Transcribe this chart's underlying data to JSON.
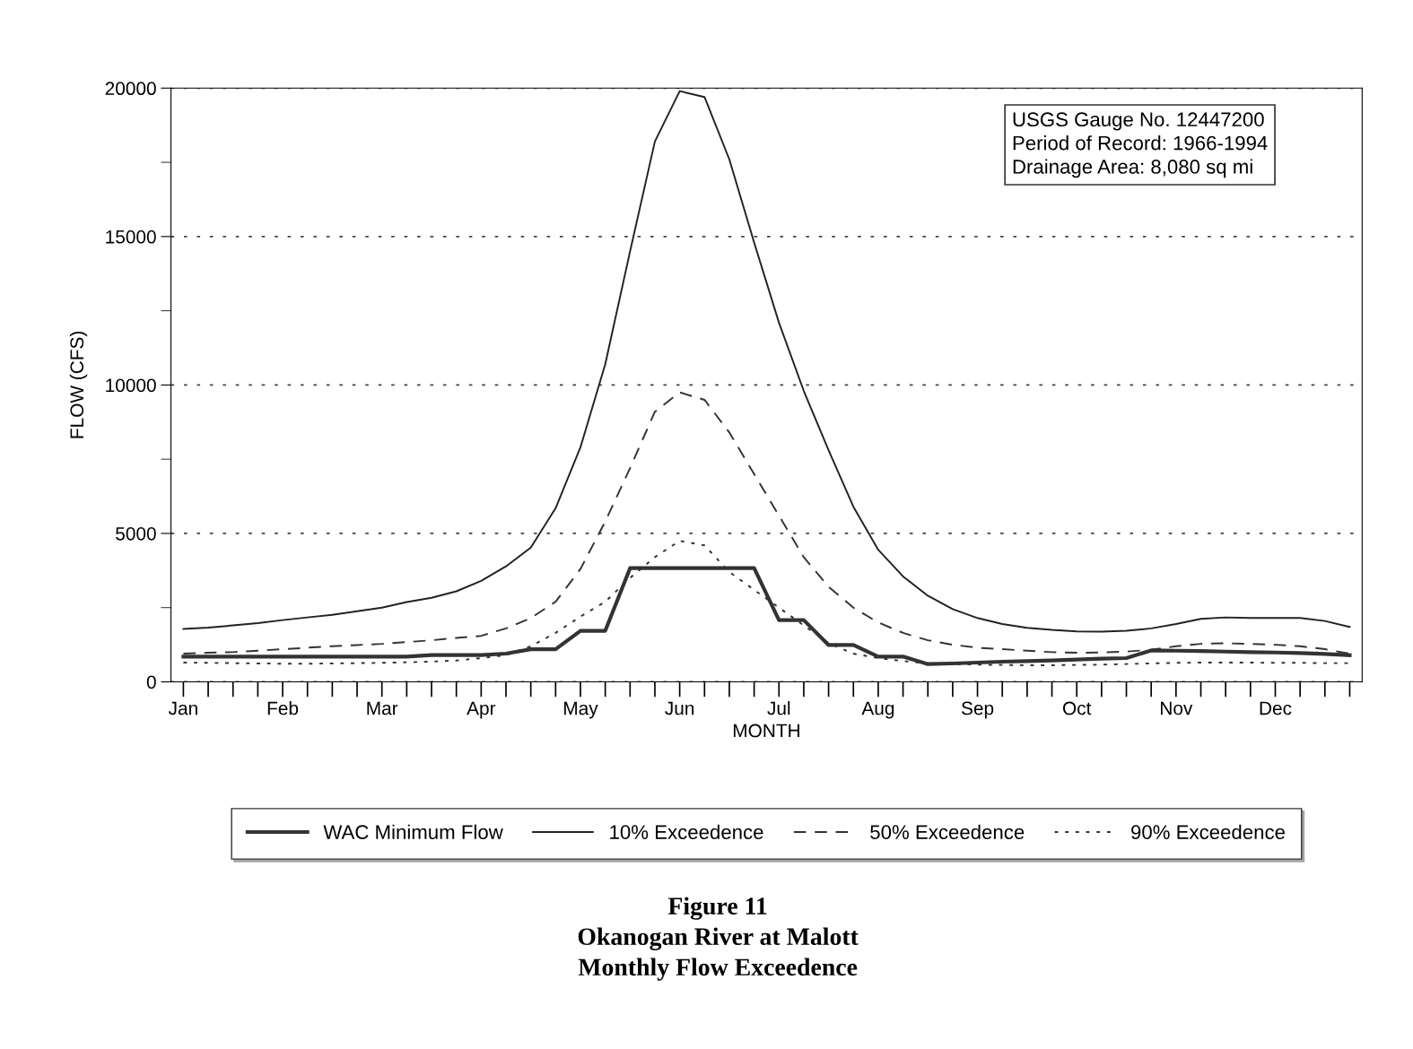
{
  "chart_data": {
    "type": "line",
    "title": "Figure 11\nOkanogan River at Malott\nMonthly Flow Exceedence",
    "xlabel": "MONTH",
    "ylabel": "FLOW (CFS)",
    "annotations": [
      "USGS Gauge No. 12447200\nPeriod of Record: 1966-1994\nDrainage Area: 8,080 sq mi"
    ],
    "categories": [
      "Jan",
      null,
      null,
      null,
      "Feb",
      null,
      null,
      null,
      "Mar",
      null,
      null,
      null,
      "Apr",
      null,
      null,
      null,
      "May",
      null,
      null,
      null,
      "Jun",
      null,
      null,
      null,
      "Jul",
      null,
      null,
      null,
      "Aug",
      null,
      null,
      null,
      "Sep",
      null,
      null,
      null,
      "Oct",
      null,
      null,
      null,
      "Nov",
      null,
      null,
      null,
      "Dec",
      null,
      null,
      null
    ],
    "ylim": [
      0,
      20000
    ],
    "yticks": [
      0,
      {
        "value": 2500,
        "label": null
      },
      5000,
      {
        "value": 7500,
        "label": null
      },
      10000,
      {
        "value": 12500,
        "label": null
      },
      15000,
      {
        "value": 17500,
        "label": null
      },
      20000
    ],
    "grid": "y",
    "legend": "bottom",
    "marker": "none",
    "series": [
      {
        "name": "WAC Minimum Flow",
        "color": "#333333",
        "line_style": "solid",
        "values": [
          850,
          850,
          850,
          850,
          850,
          850,
          850,
          850,
          850,
          850,
          900,
          900,
          900,
          950,
          1100,
          1100,
          1720,
          1720,
          3830,
          3830,
          3830,
          3830,
          3830,
          3830,
          2080,
          2080,
          1240,
          1240,
          850,
          850,
          600,
          620,
          650,
          680,
          700,
          720,
          750,
          780,
          800,
          1060,
          1050,
          1040,
          1020,
          1000,
          990,
          970,
          940,
          900
        ]
      },
      {
        "name": "10% Exceedence",
        "color": "#222222",
        "line_style": "solid",
        "values": [
          1780,
          1830,
          1900,
          1980,
          2080,
          2170,
          2260,
          2380,
          2500,
          2690,
          2830,
          3050,
          3400,
          3890,
          4520,
          5850,
          7900,
          10700,
          14500,
          18200,
          19900,
          19700,
          17600,
          14800,
          12100,
          9800,
          7800,
          5900,
          4450,
          3550,
          2900,
          2450,
          2150,
          1950,
          1820,
          1750,
          1700,
          1690,
          1720,
          1800,
          1950,
          2120,
          2170,
          2150,
          2150,
          2150,
          2050,
          1850
        ]
      },
      {
        "name": "50% Exceedence",
        "color": "#333333",
        "line_style": "dashed",
        "values": [
          950,
          980,
          1000,
          1050,
          1100,
          1150,
          1200,
          1240,
          1280,
          1340,
          1400,
          1480,
          1550,
          1800,
          2150,
          2700,
          3800,
          5400,
          7200,
          9100,
          9750,
          9500,
          8400,
          7000,
          5600,
          4200,
          3200,
          2500,
          2000,
          1650,
          1400,
          1250,
          1150,
          1100,
          1050,
          1000,
          980,
          990,
          1020,
          1080,
          1200,
          1280,
          1300,
          1280,
          1250,
          1200,
          1100,
          950
        ]
      },
      {
        "name": "90% Exceedence",
        "color": "#333333",
        "line_style": "dotted",
        "values": [
          650,
          640,
          630,
          620,
          610,
          610,
          620,
          630,
          640,
          660,
          680,
          720,
          800,
          900,
          1200,
          1650,
          2200,
          2700,
          3500,
          4200,
          4750,
          4600,
          3700,
          3100,
          2500,
          1900,
          1300,
          950,
          800,
          700,
          620,
          600,
          580,
          570,
          560,
          560,
          570,
          580,
          600,
          620,
          640,
          650,
          650,
          650,
          640,
          640,
          630,
          630
        ]
      }
    ]
  }
}
